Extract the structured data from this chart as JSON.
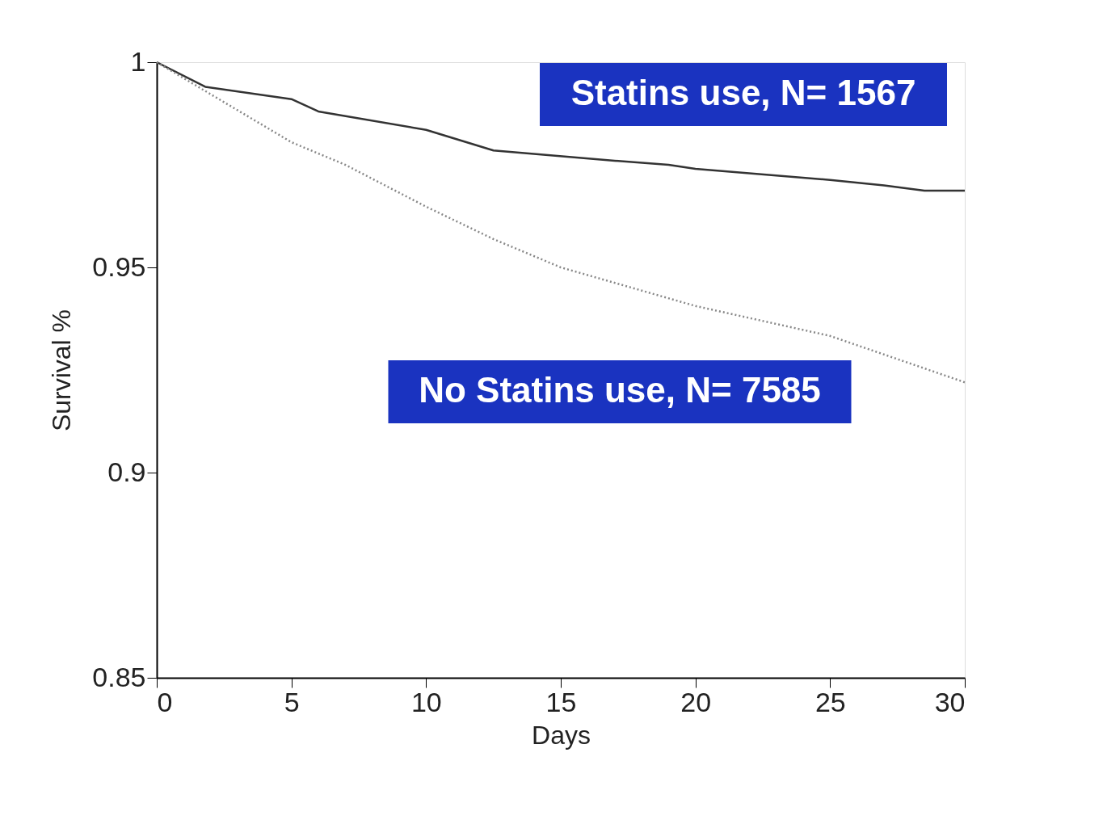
{
  "chart_data": {
    "type": "line",
    "xlabel": "Days",
    "ylabel": "Survival %",
    "series": [
      {
        "color": "#333333",
        "line_style": "solid",
        "x": [
          0,
          1.8,
          5,
          6,
          10,
          12.5,
          17,
          19,
          20,
          25,
          27,
          28.5,
          30
        ],
        "values": [
          1.0,
          0.994,
          0.991,
          0.988,
          0.9835,
          0.9785,
          0.976,
          0.975,
          0.974,
          0.9713,
          0.97,
          0.9687,
          0.9687
        ]
      },
      {
        "color": "#888888",
        "line_style": "dotted",
        "x": [
          0,
          5,
          7,
          10,
          12.5,
          15,
          20,
          25,
          30
        ],
        "values": [
          1.0,
          0.9805,
          0.975,
          0.9648,
          0.9569,
          0.95,
          0.9406,
          0.9333,
          0.922
        ]
      }
    ],
    "annotations": [
      "Statins use, N= 1567",
      "No Statins use, N= 7585"
    ],
    "xlim": [
      0,
      30
    ],
    "xticks": [
      0,
      5,
      10,
      15,
      20,
      25,
      30
    ],
    "ylim": [
      0.85,
      1
    ],
    "yticks": [
      0.85,
      0.9,
      0.95,
      1
    ],
    "grid": false,
    "marker": "none"
  }
}
